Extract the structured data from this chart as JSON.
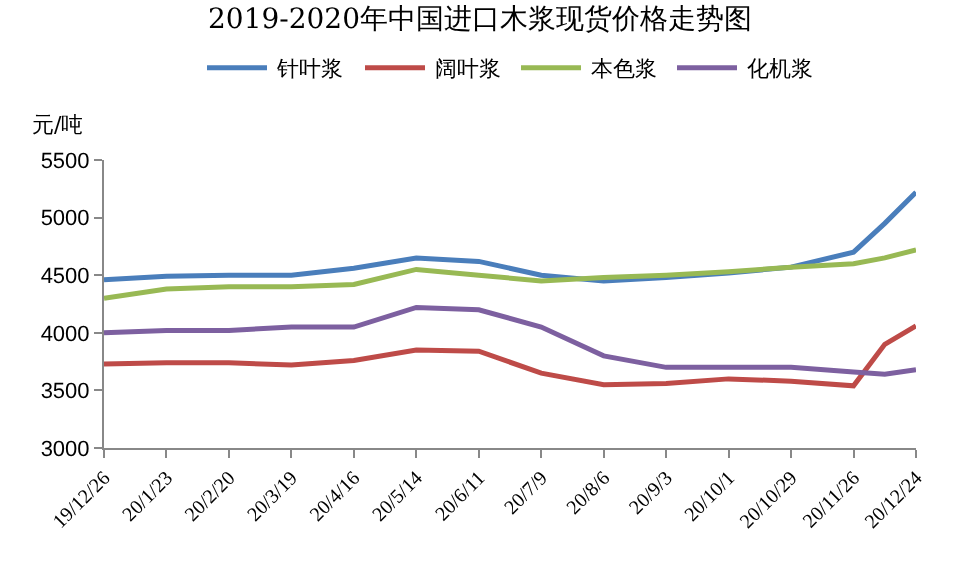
{
  "chart_data": {
    "type": "line",
    "title": "2019-2020年中国进口木浆现货价格走势图",
    "ylabel": "元/吨",
    "x": [
      "2019-12-26",
      "2020-01-23",
      "2020-02-20",
      "2020-03-19",
      "2020-04-16",
      "2020-05-14",
      "2020-06-11",
      "2020-07-09",
      "2020-08-06",
      "2020-09-03",
      "2020-10-01",
      "2020-10-29",
      "2020-11-26",
      "2020-12-10",
      "2020-12-24"
    ],
    "series": [
      {
        "name": "针叶浆",
        "color": "#4a7ebb",
        "values": [
          4460,
          4490,
          4500,
          4500,
          4560,
          4650,
          4620,
          4500,
          4450,
          4480,
          4520,
          4570,
          4700,
          4950,
          5220
        ]
      },
      {
        "name": "阔叶浆",
        "color": "#be4b48",
        "values": [
          3730,
          3740,
          3740,
          3720,
          3760,
          3850,
          3840,
          3650,
          3550,
          3560,
          3600,
          3580,
          3540,
          3900,
          4060
        ]
      },
      {
        "name": "本色浆",
        "color": "#98b954",
        "values": [
          4300,
          4380,
          4400,
          4400,
          4420,
          4550,
          4500,
          4450,
          4480,
          4500,
          4530,
          4570,
          4600,
          4650,
          4720
        ]
      },
      {
        "name": "化机浆",
        "color": "#7d60a0",
        "values": [
          4000,
          4020,
          4020,
          4050,
          4050,
          4220,
          4200,
          4050,
          3800,
          3700,
          3700,
          3700,
          3660,
          3640,
          3680
        ]
      }
    ],
    "xlim": [
      "2019-12-26",
      "2020-12-24"
    ],
    "xticks": [
      {
        "value": "2019-12-26",
        "label": "19/12/26"
      },
      {
        "value": "2020-01-23",
        "label": "20/1/23"
      },
      {
        "value": "2020-02-20",
        "label": "20/2/20"
      },
      {
        "value": "2020-03-19",
        "label": "20/3/19"
      },
      {
        "value": "2020-04-16",
        "label": "20/4/16"
      },
      {
        "value": "2020-05-14",
        "label": "20/5/14"
      },
      {
        "value": "2020-06-11",
        "label": "20/6/11"
      },
      {
        "value": "2020-07-09",
        "label": "20/7/9"
      },
      {
        "value": "2020-08-06",
        "label": "20/8/6"
      },
      {
        "value": "2020-09-03",
        "label": "20/9/3"
      },
      {
        "value": "2020-10-01",
        "label": "20/10/1"
      },
      {
        "value": "2020-10-29",
        "label": "20/10/29"
      },
      {
        "value": "2020-11-26",
        "label": "20/11/26"
      },
      {
        "value": "2020-12-24",
        "label": "20/12/24"
      }
    ],
    "ylim": [
      3000,
      5500
    ],
    "yticks": [
      3000,
      3500,
      4000,
      4500,
      5000,
      5500
    ],
    "grid": false,
    "legend": "top",
    "marker": "none",
    "line_style": "solid"
  }
}
